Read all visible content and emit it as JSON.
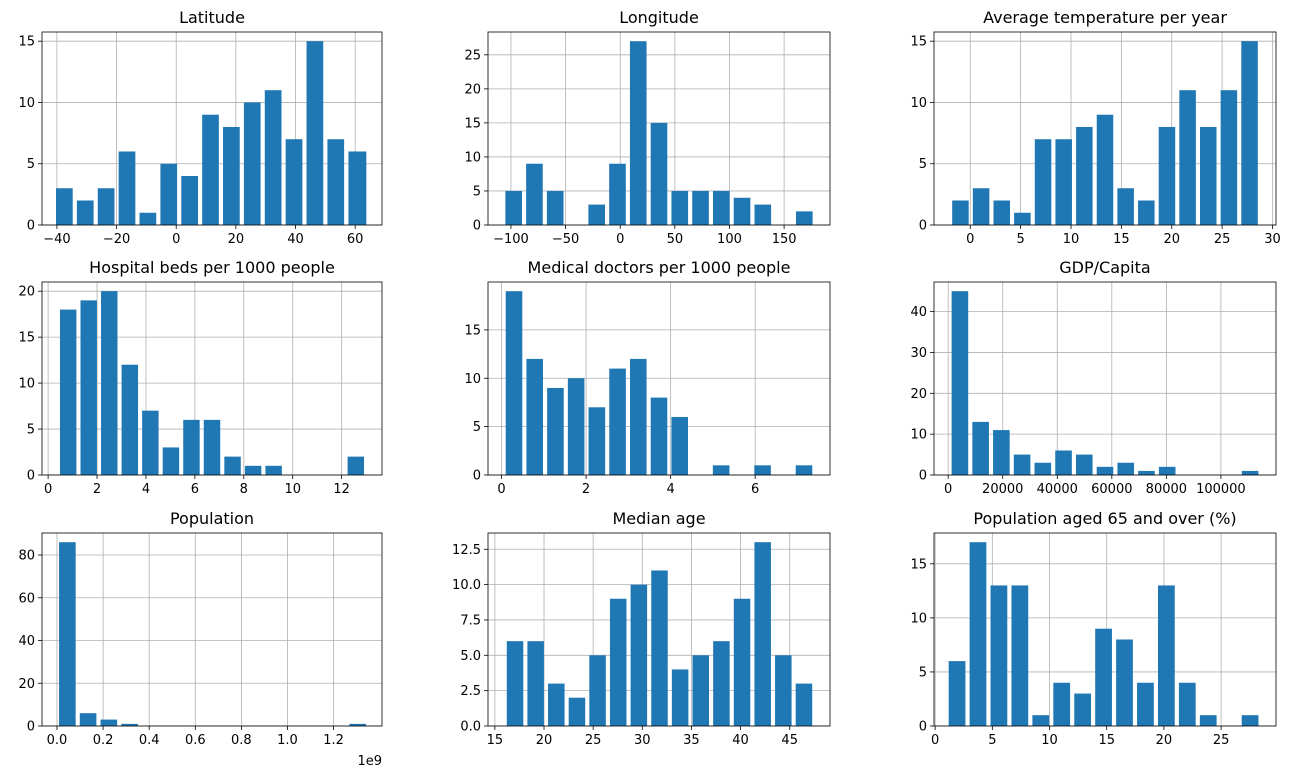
{
  "chart_data": [
    {
      "type": "bar",
      "title": "Latitude",
      "xlabel": "",
      "ylabel": "",
      "bin_edges": [
        -41,
        -34.0,
        -27.0,
        -20.0,
        -13.0,
        -6.0,
        1.0,
        8.0,
        15.0,
        22.0,
        29.0,
        36.0,
        43.0,
        50.0,
        57.0,
        64.5
      ],
      "values": [
        3,
        2,
        3,
        6,
        1,
        5,
        4,
        9,
        8,
        10,
        11,
        7,
        15,
        7,
        6
      ],
      "xlim": [
        -45,
        69
      ],
      "ylim": [
        0,
        15.75
      ],
      "xticks": [
        -40,
        -20,
        0,
        20,
        40,
        60
      ],
      "yticks": [
        0,
        5,
        10,
        15
      ],
      "xticklabels": [
        "−40",
        "−20",
        "0",
        "20",
        "40",
        "60"
      ],
      "yticklabels": [
        "0",
        "5",
        "10",
        "15"
      ],
      "grid": true
    },
    {
      "type": "bar",
      "title": "Longitude",
      "xlabel": "",
      "ylabel": "",
      "bin_edges": [
        -107,
        -88.0,
        -69.0,
        -50.0,
        -31.0,
        -12.0,
        7.0,
        26.0,
        45.0,
        64.0,
        83.0,
        102.0,
        121.0,
        140.0,
        159.0,
        178.0
      ],
      "values": [
        5,
        9,
        5,
        0,
        3,
        9,
        27,
        15,
        5,
        5,
        5,
        4,
        3,
        0,
        2
      ],
      "xlim": [
        -121,
        192
      ],
      "ylim": [
        0,
        28.35
      ],
      "xticks": [
        -100,
        -50,
        0,
        50,
        100,
        150
      ],
      "yticks": [
        0,
        5,
        10,
        15,
        20,
        25
      ],
      "xticklabels": [
        "−100",
        "−50",
        "0",
        "50",
        "100",
        "150"
      ],
      "yticklabels": [
        "0",
        "5",
        "10",
        "15",
        "20",
        "25"
      ],
      "grid": true
    },
    {
      "type": "bar",
      "title": "Average temperature per year",
      "xlabel": "",
      "ylabel": "",
      "bin_edges": [
        -2,
        0.05,
        2.1,
        4.15,
        6.2,
        8.25,
        10.3,
        12.35,
        14.4,
        16.45,
        18.5,
        20.55,
        22.6,
        24.65,
        26.7,
        28.75
      ],
      "values": [
        2,
        3,
        2,
        1,
        7,
        7,
        8,
        9,
        3,
        2,
        8,
        11,
        8,
        11,
        15
      ],
      "xlim": [
        -3.6,
        30.35
      ],
      "ylim": [
        0,
        15.75
      ],
      "xticks": [
        0,
        5,
        10,
        15,
        20,
        25,
        30
      ],
      "yticks": [
        0,
        5,
        10,
        15
      ],
      "xticklabels": [
        "0",
        "5",
        "10",
        "15",
        "20",
        "25",
        "30"
      ],
      "yticklabels": [
        "0",
        "5",
        "10",
        "15"
      ],
      "grid": true
    },
    {
      "type": "bar",
      "title": "Hospital beds per 1000 people",
      "xlabel": "",
      "ylabel": "",
      "bin_edges": [
        0.4,
        1.24,
        2.08,
        2.92,
        3.76,
        4.6,
        5.44,
        6.28,
        7.12,
        7.96,
        8.8,
        9.64,
        10.48,
        11.32,
        12.16,
        13.0
      ],
      "values": [
        18,
        19,
        20,
        12,
        7,
        3,
        6,
        6,
        2,
        1,
        1,
        0,
        0,
        0,
        2
      ],
      "xlim": [
        -0.25,
        13.65
      ],
      "ylim": [
        0,
        21
      ],
      "xticks": [
        0,
        2,
        4,
        6,
        8,
        10,
        12
      ],
      "yticks": [
        0,
        5,
        10,
        15,
        20
      ],
      "xticklabels": [
        "0",
        "2",
        "4",
        "6",
        "8",
        "10",
        "12"
      ],
      "yticklabels": [
        "0",
        "5",
        "10",
        "15",
        "20"
      ],
      "grid": true
    },
    {
      "type": "bar",
      "title": "Medical doctors per 1000 people",
      "xlabel": "",
      "ylabel": "",
      "bin_edges": [
        0.05,
        0.54,
        1.03,
        1.52,
        2.01,
        2.5,
        2.99,
        3.48,
        3.97,
        4.46,
        4.95,
        5.44,
        5.93,
        6.42,
        6.91,
        7.4
      ],
      "values": [
        19,
        12,
        9,
        10,
        7,
        11,
        12,
        8,
        6,
        0,
        1,
        0,
        1,
        0,
        1
      ],
      "xlim": [
        -0.32,
        7.77
      ],
      "ylim": [
        0,
        19.95
      ],
      "xticks": [
        0,
        2,
        4,
        6
      ],
      "yticks": [
        0,
        5,
        10,
        15
      ],
      "xticklabels": [
        "0",
        "2",
        "4",
        "6"
      ],
      "yticklabels": [
        "0",
        "5",
        "10",
        "15"
      ],
      "grid": true
    },
    {
      "type": "bar",
      "title": "GDP/Capita",
      "xlabel": "",
      "ylabel": "",
      "bin_edges": [
        500,
        8100,
        15700,
        23300,
        30900,
        38500,
        46100,
        53700,
        61300,
        68900,
        76500,
        84100,
        91700,
        99300,
        106900,
        114500
      ],
      "values": [
        45,
        13,
        11,
        5,
        3,
        6,
        5,
        2,
        3,
        1,
        2,
        0,
        0,
        0,
        1
      ],
      "xlim": [
        -5200,
        120200
      ],
      "ylim": [
        0,
        47.25
      ],
      "xticks": [
        0,
        20000,
        40000,
        60000,
        80000,
        100000
      ],
      "yticks": [
        0,
        10,
        20,
        30,
        40
      ],
      "xticklabels": [
        "0",
        "20000",
        "40000",
        "60000",
        "80000",
        "100000"
      ],
      "yticklabels": [
        "0",
        "10",
        "20",
        "30",
        "40"
      ],
      "grid": true
    },
    {
      "type": "bar",
      "title": "Population",
      "xlabel": "",
      "ylabel": "",
      "x_offset_label": "1e9",
      "bin_edges": [
        0.0,
        0.09,
        0.18,
        0.27,
        0.36,
        0.45,
        0.54,
        0.63,
        0.72,
        0.81,
        0.9,
        0.99,
        1.08,
        1.17,
        1.26,
        1.35
      ],
      "values": [
        86,
        6,
        3,
        1,
        0,
        0,
        0,
        0,
        0,
        0,
        0,
        0,
        0,
        0,
        1
      ],
      "xlim": [
        -0.065,
        1.41
      ],
      "ylim": [
        0,
        90.3
      ],
      "xticks": [
        0.0,
        0.2,
        0.4,
        0.6,
        0.8,
        1.0,
        1.2
      ],
      "yticks": [
        0,
        20,
        40,
        60,
        80
      ],
      "xticklabels": [
        "0.0",
        "0.2",
        "0.4",
        "0.6",
        "0.8",
        "1.0",
        "1.2"
      ],
      "yticklabels": [
        "0",
        "20",
        "40",
        "60",
        "80"
      ],
      "grid": true
    },
    {
      "type": "bar",
      "title": "Median age",
      "xlabel": "",
      "ylabel": "",
      "bin_edges": [
        16,
        18.1,
        20.2,
        22.3,
        24.4,
        26.5,
        28.6,
        30.7,
        32.8,
        34.9,
        37.0,
        39.1,
        41.2,
        43.3,
        45.4,
        47.5
      ],
      "values": [
        6,
        6,
        3,
        2,
        5,
        9,
        10,
        11,
        4,
        5,
        6,
        9,
        13,
        5,
        3
      ],
      "xlim": [
        14.3,
        49.1
      ],
      "ylim": [
        0,
        13.65
      ],
      "xticks": [
        15,
        20,
        25,
        30,
        35,
        40,
        45
      ],
      "yticks": [
        0.0,
        2.5,
        5.0,
        7.5,
        10.0,
        12.5
      ],
      "xticklabels": [
        "15",
        "20",
        "25",
        "30",
        "35",
        "40",
        "45"
      ],
      "yticklabels": [
        "0.0",
        "2.5",
        "5.0",
        "7.5",
        "10.0",
        "12.5"
      ],
      "grid": true
    },
    {
      "type": "bar",
      "title": "Population aged 65 and over (%)",
      "xlabel": "",
      "ylabel": "",
      "bin_edges": [
        1,
        2.83,
        4.66,
        6.49,
        8.32,
        10.15,
        11.98,
        13.81,
        15.64,
        17.47,
        19.3,
        21.13,
        22.96,
        24.79,
        26.62,
        28.45
      ],
      "values": [
        6,
        17,
        13,
        13,
        1,
        4,
        3,
        9,
        8,
        4,
        13,
        4,
        1,
        0,
        1
      ],
      "xlim": [
        -0.1,
        29.8
      ],
      "ylim": [
        0,
        17.85
      ],
      "xticks": [
        0,
        5,
        10,
        15,
        20,
        25
      ],
      "yticks": [
        0,
        5,
        10,
        15
      ],
      "xticklabels": [
        "0",
        "5",
        "10",
        "15",
        "20",
        "25"
      ],
      "yticklabels": [
        "0",
        "5",
        "10",
        "15"
      ],
      "grid": true
    }
  ],
  "colors": {
    "bar": "#1f77b4",
    "grid": "#b0b0b0",
    "axis": "#000000"
  }
}
